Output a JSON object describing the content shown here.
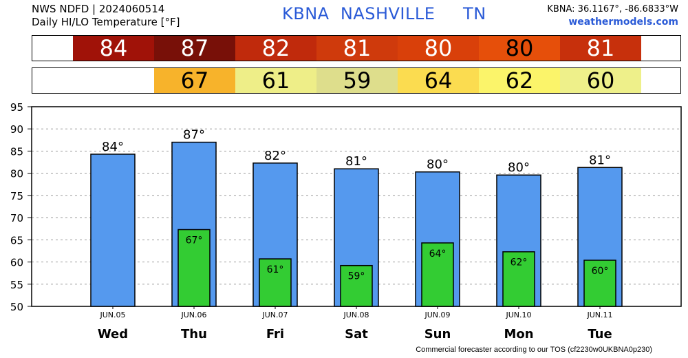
{
  "header": {
    "line1": "NWS NDFD | 2024060514",
    "line2": "Daily HI/LO Temperature [°F]",
    "station_title": "KBNA  NASHVILLE     TN",
    "coords": "KBNA: 36.1167°, -86.6833°W",
    "site": "weathermodels.com"
  },
  "footer": "Commercial forecaster according to our TOS (cf2230w0UKBNA0p230)",
  "colors": {
    "hi_bar": "#5599ee",
    "lo_bar": "#33cc33",
    "hi_strip": [
      "#a01208",
      "#781008",
      "#c02a0c",
      "#cf3a0c",
      "#d9400a",
      "#e64f0a",
      "#c7300c"
    ],
    "lo_strip": [
      "#f7b32b",
      "#eeee88",
      "#dede8c",
      "#fbdc50",
      "#fbf46a",
      "#eef08a"
    ]
  },
  "hi_strip_values": [
    "84",
    "87",
    "82",
    "81",
    "80",
    "80",
    "81"
  ],
  "lo_strip_values": [
    "67",
    "61",
    "59",
    "64",
    "62",
    "60"
  ],
  "chart_data": {
    "type": "bar",
    "title": "Daily HI/LO Temperature [°F]",
    "dates": [
      "JUN.05",
      "JUN.06",
      "JUN.07",
      "JUN.08",
      "JUN.09",
      "JUN.10",
      "JUN.11"
    ],
    "categories": [
      "Wed",
      "Thu",
      "Fri",
      "Sat",
      "Sun",
      "Mon",
      "Tue"
    ],
    "series": [
      {
        "values": [
          84.3,
          87,
          82.3,
          81,
          80.3,
          79.6,
          81.3
        ],
        "labels": [
          "84°",
          "87°",
          "82°",
          "81°",
          "80°",
          "80°",
          "81°"
        ]
      },
      {
        "values": [
          null,
          67.3,
          60.7,
          59.2,
          64.3,
          62.3,
          60.4
        ],
        "labels": [
          "",
          "67°",
          "61°",
          "59°",
          "64°",
          "62°",
          "60°"
        ]
      }
    ],
    "ylim": [
      50,
      95
    ],
    "yticks": [
      50,
      55,
      60,
      65,
      70,
      75,
      80,
      85,
      90,
      95
    ],
    "grid": true
  }
}
